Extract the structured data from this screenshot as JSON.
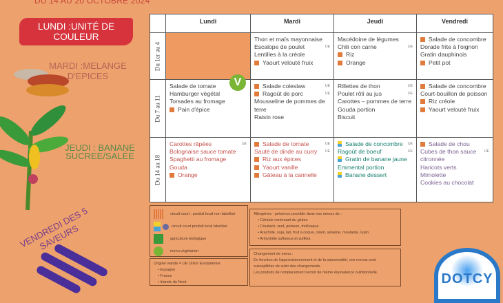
{
  "header": {
    "date_range": "DU 14 AU 20 OCTOBRE 2024"
  },
  "themes": {
    "lundi": "LUNDI :UNITÉ DE COULEUR",
    "mardi": "MARDI :MELANGE D'EPICES",
    "jeudi": "JEUDI : BANANE SUCREE/SALÉE",
    "vendredi": "VENDREDI DES 5 SAVEURS"
  },
  "table": {
    "columns": [
      "Lundi",
      "Mardi",
      "Jeudi",
      "Vendredi"
    ],
    "weeks": [
      {
        "label": "Du 1er au 4",
        "days": [
          [],
          [
            {
              "t": "Thon et maïs mayonnaise"
            },
            {
              "t": "Escalope de poulet",
              "tag": "UE"
            },
            {
              "t": "Lentilles à la créole"
            },
            {
              "t": "Yaourt velouté fruix",
              "m": "local"
            }
          ],
          [
            {
              "t": "Macédoine de légumes"
            },
            {
              "t": "Chili con carne",
              "tag": "UE"
            },
            {
              "t": "Riz",
              "m": "local"
            },
            {
              "t": "Orange",
              "m": "local"
            }
          ],
          [
            {
              "t": "Salade de concombre",
              "m": "local"
            },
            {
              "t": "Dorade frite à l'oignon"
            },
            {
              "t": "Gratin dauphinois"
            },
            {
              "t": "Petit pot",
              "m": "local"
            }
          ]
        ]
      },
      {
        "label": "Du 7 au 11",
        "days": [
          [
            {
              "t": "Salade de tomate"
            },
            {
              "t": "Hamburger végétal"
            },
            {
              "t": "Torsades au fromage"
            },
            {
              "t": "Pain d'épice",
              "m": "local"
            }
          ],
          [
            {
              "t": "Salade coleslaw",
              "m": "local",
              "tag": "UE"
            },
            {
              "t": "Ragoût de porc",
              "m": "local",
              "tag": "UE"
            },
            {
              "t": "Mousseline de pommes de terre"
            },
            {
              "t": "Raisin rose"
            }
          ],
          [
            {
              "t": "Rillettes de thon",
              "tag": "UE"
            },
            {
              "t": "Poulet rôti au jus",
              "tag": "UE"
            },
            {
              "t": "Carottes – pommes de terre"
            },
            {
              "t": "Gouda portion"
            },
            {
              "t": "Biscuit"
            }
          ],
          [
            {
              "t": "Salade de concombre",
              "m": "local"
            },
            {
              "t": "Court-bouillon de poisson"
            },
            {
              "t": "Riz créole",
              "m": "local"
            },
            {
              "t": "Yaourt velouté fruix",
              "m": "local"
            }
          ]
        ]
      },
      {
        "label": "Du 14 au 18",
        "days": [
          [
            {
              "t": "Carottes râpées",
              "tag": "UE"
            },
            {
              "t": "Bolognaise sauce tomate"
            },
            {
              "t": "Spaghetti au fromage"
            },
            {
              "t": "Gouda"
            },
            {
              "t": "Orange",
              "m": "local"
            }
          ],
          [
            {
              "t": "Salade de tomate",
              "m": "local",
              "tag": "UE"
            },
            {
              "t": "Sauté de dinde au curry",
              "tag": "UE"
            },
            {
              "t": "Riz aux épices",
              "m": "local"
            },
            {
              "t": "Yaourt vanille",
              "m": "local"
            },
            {
              "t": "Gâteau à la cannelle",
              "m": "local"
            }
          ],
          [
            {
              "t": "Salade de concombre",
              "m": "label",
              "tag": "UE"
            },
            {
              "t": "Ragoût de boeuf",
              "tag": "UE"
            },
            {
              "t": "Gratin de banane jaune",
              "m": "label"
            },
            {
              "t": "Emmental portion"
            },
            {
              "t": "Banane dessert",
              "m": "label"
            }
          ],
          [
            {
              "t": "Salade de chou",
              "m": "local"
            },
            {
              "t": "Cubes de thon sauce citronnée",
              "tag": "UE"
            },
            {
              "t": "Haricots verts"
            },
            {
              "t": "Mimolette"
            },
            {
              "t": "Cookies au chocolat"
            }
          ]
        ]
      }
    ]
  },
  "legend": {
    "items": [
      "circuit court : produit local non labellisé",
      "circuit court produit local labellisé",
      "agriculture biologique",
      "menu végétarien"
    ],
    "colors": {
      "local": "#e07b3c",
      "bio": "#3a9a3a",
      "vegetarien": "#7ab535"
    }
  },
  "origin": {
    "title": "Origine viande = UE Union Européenne",
    "items": [
      "Espagne",
      "France",
      "Irlande du Nord"
    ]
  },
  "allergens": {
    "title": "Allergènes - présence possible dans nos menus de :",
    "items": [
      "Céréale contenant du gluten",
      "Crustacé, œuf, poisson, mollusque",
      "Arachide, soja, lait, fruit à coque, céleri, sésame, moutarde, lupin",
      "Anhydride sulfureux et sulfites"
    ]
  },
  "changes": {
    "title": "Changement de menu :",
    "lines": [
      "En fonction de l'approvisionnement et de la saisonnalité, nos menus sont susceptibles de subir des changements.",
      "Les produits de remplacement seront de même équivalence nutritionnelle."
    ]
  },
  "logo": {
    "text": "DOTCY"
  }
}
